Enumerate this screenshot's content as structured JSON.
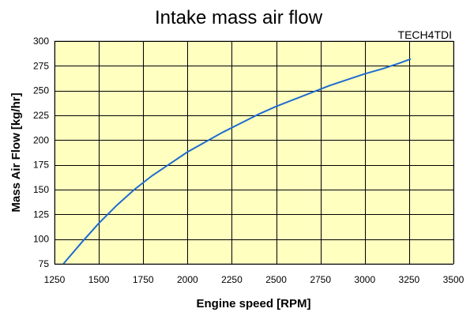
{
  "chart_data": {
    "type": "line",
    "title": "Intake mass air flow",
    "watermark": "TECH4TDI",
    "xlabel": "Engine speed [RPM]",
    "ylabel": "Mass Air Flow [kg/hr]",
    "xlim": [
      1250,
      3500
    ],
    "ylim": [
      75,
      300
    ],
    "xticks": [
      1250,
      1500,
      1750,
      2000,
      2250,
      2500,
      2750,
      3000,
      3250,
      3500
    ],
    "yticks": [
      75,
      100,
      125,
      150,
      175,
      200,
      225,
      250,
      275,
      300
    ],
    "grid": true,
    "plot_background": "#ffffc0",
    "series": [
      {
        "color": "#1f6bd0",
        "x": [
          1300,
          1400,
          1500,
          1600,
          1700,
          1800,
          1900,
          2000,
          2100,
          2200,
          2300,
          2400,
          2500,
          2600,
          2700,
          2800,
          2900,
          3000,
          3100,
          3200,
          3260
        ],
        "y": [
          75,
          96,
          116,
          134,
          150,
          164,
          176,
          188,
          198,
          208,
          217,
          226,
          234,
          241,
          248,
          255,
          261,
          267,
          272,
          278,
          282
        ]
      }
    ]
  }
}
